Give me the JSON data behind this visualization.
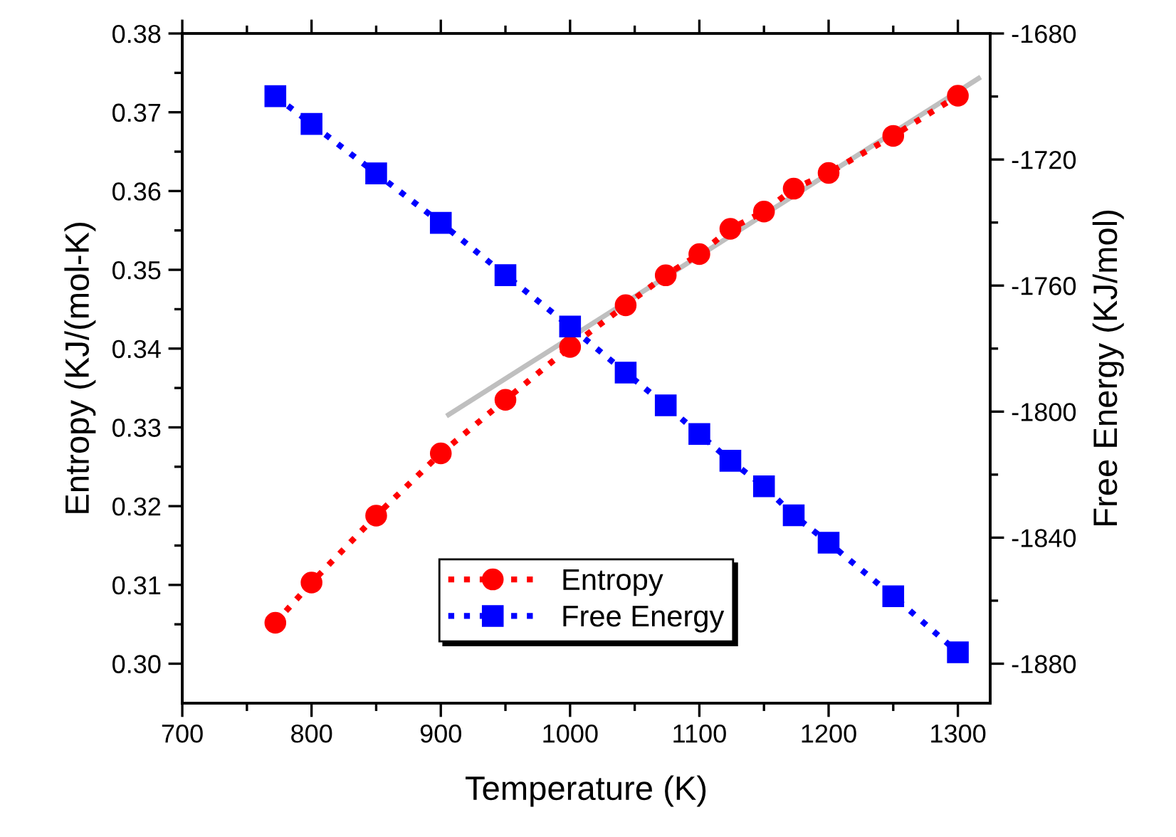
{
  "chart_data": {
    "type": "line",
    "xlabel": "Temperature (K)",
    "ylabel": "Entropy (KJ/(mol-K)",
    "y2label": "Free Energy (KJ/mol)",
    "x": [
      772,
      800,
      850,
      900,
      950,
      1000,
      1043,
      1074,
      1100,
      1124,
      1150,
      1173,
      1200,
      1250,
      1300
    ],
    "series": [
      {
        "name": "Entropy",
        "color": "#ff0000",
        "marker": "circle",
        "line_style": "dotted",
        "values": [
          0.3052,
          0.3103,
          0.3188,
          0.3267,
          0.3335,
          0.3402,
          0.3455,
          0.3493,
          0.352,
          0.3552,
          0.3574,
          0.3603,
          0.3623,
          0.367,
          0.3721
        ]
      },
      {
        "name": "Free Energy",
        "color": "#0000ff",
        "marker": "square",
        "line_style": "dotted",
        "axis": "y2",
        "values": [
          -1699.9,
          -1708.7,
          -1724.4,
          -1740.1,
          -1756.7,
          -1773.0,
          -1787.6,
          -1798.0,
          -1807.1,
          -1815.6,
          -1823.7,
          -1832.9,
          -1841.6,
          -1858.6,
          -1876.4
        ]
      },
      {
        "color": "#bfbfbf",
        "marker": "none",
        "line_style": "solid",
        "x": [
          906,
          1316
        ],
        "values": [
          0.3316,
          0.3743
        ]
      }
    ],
    "xlim": [
      700,
      1325
    ],
    "xticks": [
      700,
      {
        "value": 750,
        "label": null
      },
      800,
      {
        "value": 850,
        "label": null
      },
      900,
      {
        "value": 950,
        "label": null
      },
      1000,
      {
        "value": 1050,
        "label": null
      },
      1100,
      {
        "value": 1150,
        "label": null
      },
      1200,
      {
        "value": 1250,
        "label": null
      },
      1300
    ],
    "ylim": [
      0.295,
      0.38
    ],
    "yticks": [
      {
        "value": 0.3,
        "label": "0.30"
      },
      {
        "value": 0.305,
        "label": null
      },
      {
        "value": 0.31,
        "label": "0.31"
      },
      {
        "value": 0.315,
        "label": null
      },
      {
        "value": 0.32,
        "label": "0.32"
      },
      {
        "value": 0.325,
        "label": null
      },
      {
        "value": 0.33,
        "label": "0.33"
      },
      {
        "value": 0.335,
        "label": null
      },
      {
        "value": 0.34,
        "label": "0.34"
      },
      {
        "value": 0.345,
        "label": null
      },
      {
        "value": 0.35,
        "label": "0.35"
      },
      {
        "value": 0.355,
        "label": null
      },
      {
        "value": 0.36,
        "label": "0.36"
      },
      {
        "value": 0.365,
        "label": null
      },
      {
        "value": 0.37,
        "label": "0.37"
      },
      {
        "value": 0.375,
        "label": null
      },
      {
        "value": 0.38,
        "label": "0.38"
      }
    ],
    "y2lim": [
      -1892.5,
      -1680
    ],
    "y2ticks": [
      -1880,
      {
        "value": -1860,
        "label": null
      },
      -1840,
      {
        "value": -1820,
        "label": null
      },
      -1800,
      {
        "value": -1780,
        "label": null
      },
      -1760,
      {
        "value": -1740,
        "label": null
      },
      -1720,
      {
        "value": -1700,
        "label": null
      },
      -1680
    ],
    "grid": false,
    "legend": "bottom"
  }
}
